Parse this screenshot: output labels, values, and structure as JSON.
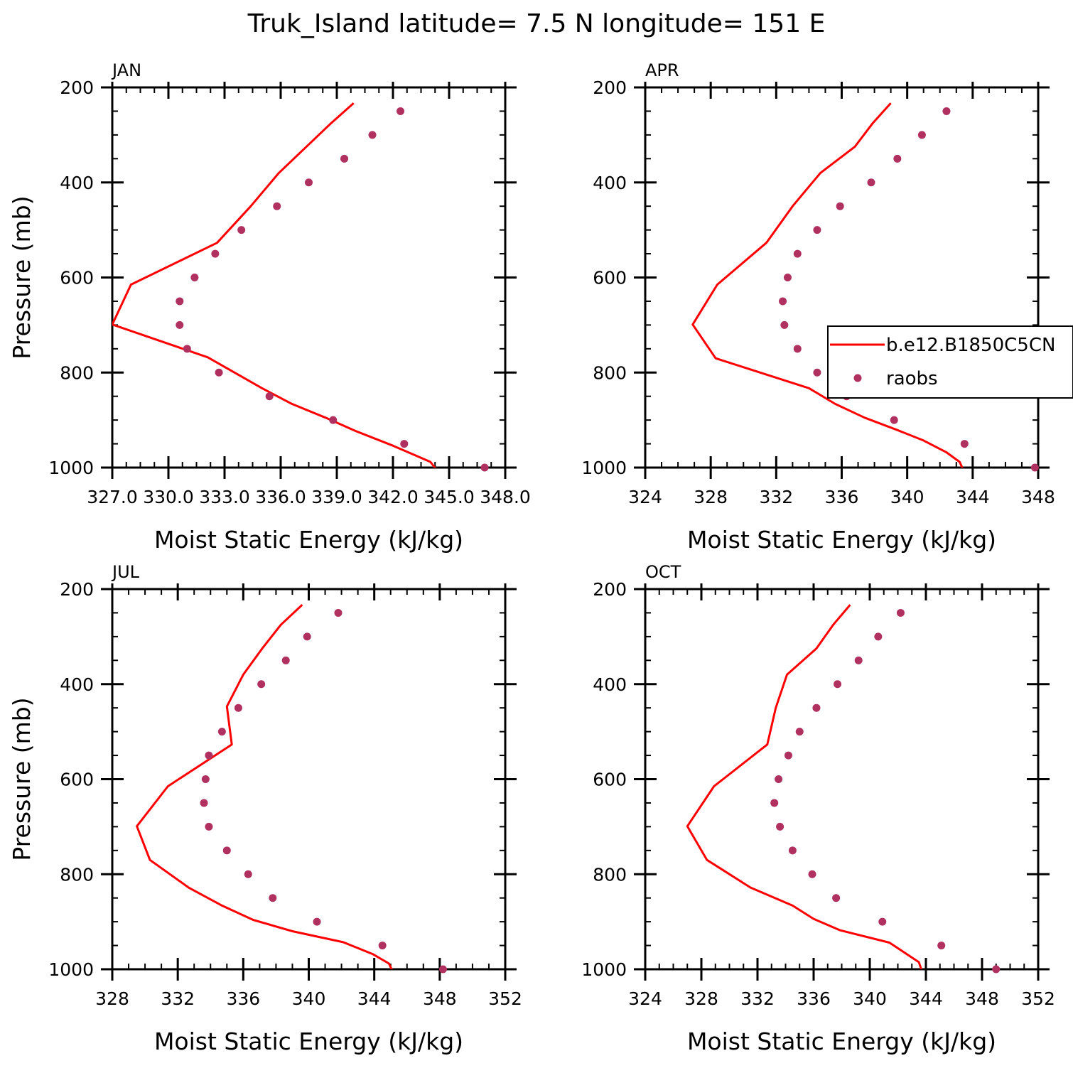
{
  "figure": {
    "title": "Truk_Island  latitude= 7.5 N longitude= 151 E"
  },
  "legend": {
    "model_label": "b.e12.B1850C5CN",
    "obs_label": "raobs",
    "panel_index": 1
  },
  "colors": {
    "model_line": "#ff0000",
    "obs_marker": "#b03060",
    "axis": "#000000"
  },
  "chart_data": [
    {
      "type": "line",
      "panel_label": "JAN",
      "xlabel": "Moist Static Energy (kJ/kg)",
      "ylabel": "Pressure (mb)",
      "xlim": [
        327.0,
        348.0
      ],
      "ylim": [
        1000,
        200
      ],
      "xticks": [
        327.0,
        330.0,
        333.0,
        336.0,
        339.0,
        342.0,
        345.0,
        348.0
      ],
      "xtick_labels": [
        "327.0",
        "330.0",
        "333.0",
        "336.0",
        "339.0",
        "342.0",
        "345.0",
        "348.0"
      ],
      "yticks": [
        200,
        400,
        600,
        800,
        1000
      ],
      "ytick_labels": [
        "200",
        "400",
        "600",
        "800",
        "1000"
      ],
      "series": [
        {
          "name": "b.e12.B1850C5CN",
          "kind": "line",
          "points": [
            [
              344.3,
              1003
            ],
            [
              344.0,
              988
            ],
            [
              342.0,
              954
            ],
            [
              340.0,
              923
            ],
            [
              338.4,
              895
            ],
            [
              336.6,
              866
            ],
            [
              335.0,
              833
            ],
            [
              332.1,
              768
            ],
            [
              327.0,
              699
            ],
            [
              328.0,
              615
            ],
            [
              332.6,
              527
            ],
            [
              334.4,
              450
            ],
            [
              335.9,
              380
            ],
            [
              338.7,
              275
            ],
            [
              339.9,
              233
            ]
          ]
        },
        {
          "name": "raobs",
          "kind": "scatter",
          "points": [
            [
              346.9,
              1000
            ],
            [
              342.6,
              950
            ],
            [
              338.8,
              900
            ],
            [
              335.4,
              850
            ],
            [
              332.7,
              800
            ],
            [
              331.0,
              750
            ],
            [
              330.6,
              700
            ],
            [
              330.6,
              650
            ],
            [
              331.4,
              600
            ],
            [
              332.5,
              550
            ],
            [
              333.9,
              500
            ],
            [
              335.8,
              450
            ],
            [
              337.5,
              400
            ],
            [
              339.4,
              350
            ],
            [
              340.9,
              300
            ],
            [
              342.4,
              250
            ]
          ]
        }
      ]
    },
    {
      "type": "line",
      "panel_label": "APR",
      "xlabel": "Moist Static Energy (kJ/kg)",
      "ylabel": "",
      "xlim": [
        324,
        348
      ],
      "ylim": [
        1000,
        200
      ],
      "xticks": [
        324,
        328,
        332,
        336,
        340,
        344,
        348
      ],
      "xtick_labels": [
        "324",
        "328",
        "332",
        "336",
        "340",
        "344",
        "348"
      ],
      "yticks": [
        200,
        400,
        600,
        800,
        1000
      ],
      "ytick_labels": [
        "200",
        "400",
        "600",
        "800",
        "1000"
      ],
      "series": [
        {
          "name": "b.e12.B1850C5CN",
          "kind": "line",
          "points": [
            [
              343.4,
              1003
            ],
            [
              343.2,
              988
            ],
            [
              342.4,
              968
            ],
            [
              341.0,
              943
            ],
            [
              339.4,
              921
            ],
            [
              337.4,
              895
            ],
            [
              335.6,
              866
            ],
            [
              334.0,
              833
            ],
            [
              328.3,
              770
            ],
            [
              326.9,
              699
            ],
            [
              328.4,
              615
            ],
            [
              331.4,
              527
            ],
            [
              333.0,
              450
            ],
            [
              334.7,
              380
            ],
            [
              336.8,
              325
            ],
            [
              337.9,
              275
            ],
            [
              339.0,
              233
            ]
          ]
        },
        {
          "name": "raobs",
          "kind": "scatter",
          "points": [
            [
              347.8,
              1000
            ],
            [
              343.5,
              950
            ],
            [
              339.2,
              900
            ],
            [
              336.3,
              850
            ],
            [
              334.5,
              800
            ],
            [
              333.3,
              750
            ],
            [
              332.5,
              700
            ],
            [
              332.4,
              650
            ],
            [
              332.7,
              600
            ],
            [
              333.3,
              550
            ],
            [
              334.5,
              500
            ],
            [
              335.9,
              450
            ],
            [
              337.8,
              400
            ],
            [
              339.4,
              350
            ],
            [
              340.9,
              300
            ],
            [
              342.4,
              250
            ]
          ]
        }
      ]
    },
    {
      "type": "line",
      "panel_label": "JUL",
      "xlabel": "Moist Static Energy (kJ/kg)",
      "ylabel": "Pressure (mb)",
      "xlim": [
        328,
        352
      ],
      "ylim": [
        1000,
        200
      ],
      "xticks": [
        328,
        332,
        336,
        340,
        344,
        348,
        352
      ],
      "xtick_labels": [
        "328",
        "332",
        "336",
        "340",
        "344",
        "348",
        "352"
      ],
      "yticks": [
        200,
        400,
        600,
        800,
        1000
      ],
      "ytick_labels": [
        "200",
        "400",
        "600",
        "800",
        "1000"
      ],
      "series": [
        {
          "name": "b.e12.B1850C5CN",
          "kind": "line",
          "points": [
            [
              345.1,
              1003
            ],
            [
              344.9,
              988
            ],
            [
              343.9,
              968
            ],
            [
              342.1,
              943
            ],
            [
              339.0,
              920
            ],
            [
              336.6,
              896
            ],
            [
              334.7,
              866
            ],
            [
              332.7,
              829
            ],
            [
              330.3,
              770
            ],
            [
              329.5,
              699
            ],
            [
              331.4,
              615
            ],
            [
              335.3,
              527
            ],
            [
              335.0,
              447
            ],
            [
              336.0,
              380
            ],
            [
              337.2,
              323
            ],
            [
              338.3,
              275
            ],
            [
              339.6,
              233
            ]
          ]
        },
        {
          "name": "raobs",
          "kind": "scatter",
          "points": [
            [
              348.2,
              1000
            ],
            [
              344.5,
              950
            ],
            [
              340.5,
              900
            ],
            [
              337.8,
              850
            ],
            [
              336.3,
              800
            ],
            [
              335.0,
              750
            ],
            [
              333.9,
              700
            ],
            [
              333.6,
              650
            ],
            [
              333.7,
              600
            ],
            [
              333.9,
              550
            ],
            [
              334.7,
              500
            ],
            [
              335.7,
              450
            ],
            [
              337.1,
              400
            ],
            [
              338.6,
              350
            ],
            [
              339.9,
              300
            ],
            [
              341.8,
              250
            ]
          ]
        }
      ]
    },
    {
      "type": "line",
      "panel_label": "OCT",
      "xlabel": "Moist Static Energy (kJ/kg)",
      "ylabel": "",
      "xlim": [
        324,
        352
      ],
      "ylim": [
        1000,
        200
      ],
      "xticks": [
        324,
        328,
        332,
        336,
        340,
        344,
        348,
        352
      ],
      "xtick_labels": [
        "324",
        "328",
        "332",
        "336",
        "340",
        "344",
        "348",
        "352"
      ],
      "yticks": [
        200,
        400,
        600,
        800,
        1000
      ],
      "ytick_labels": [
        "200",
        "400",
        "600",
        "800",
        "1000"
      ],
      "series": [
        {
          "name": "b.e12.B1850C5CN",
          "kind": "line",
          "points": [
            [
              343.7,
              1003
            ],
            [
              343.5,
              985
            ],
            [
              341.4,
              944
            ],
            [
              337.9,
              918
            ],
            [
              336.0,
              894
            ],
            [
              334.5,
              866
            ],
            [
              331.5,
              828
            ],
            [
              328.4,
              770
            ],
            [
              327.0,
              699
            ],
            [
              328.9,
              615
            ],
            [
              332.7,
              527
            ],
            [
              333.3,
              450
            ],
            [
              334.1,
              380
            ],
            [
              336.2,
              325
            ],
            [
              337.4,
              275
            ],
            [
              338.6,
              233
            ]
          ]
        },
        {
          "name": "raobs",
          "kind": "scatter",
          "points": [
            [
              349.0,
              1000
            ],
            [
              345.1,
              950
            ],
            [
              340.9,
              900
            ],
            [
              337.6,
              850
            ],
            [
              335.9,
              800
            ],
            [
              334.5,
              750
            ],
            [
              333.6,
              700
            ],
            [
              333.2,
              650
            ],
            [
              333.5,
              600
            ],
            [
              334.2,
              550
            ],
            [
              335.0,
              500
            ],
            [
              336.2,
              450
            ],
            [
              337.7,
              400
            ],
            [
              339.2,
              350
            ],
            [
              340.6,
              300
            ],
            [
              342.2,
              250
            ]
          ]
        }
      ]
    }
  ]
}
